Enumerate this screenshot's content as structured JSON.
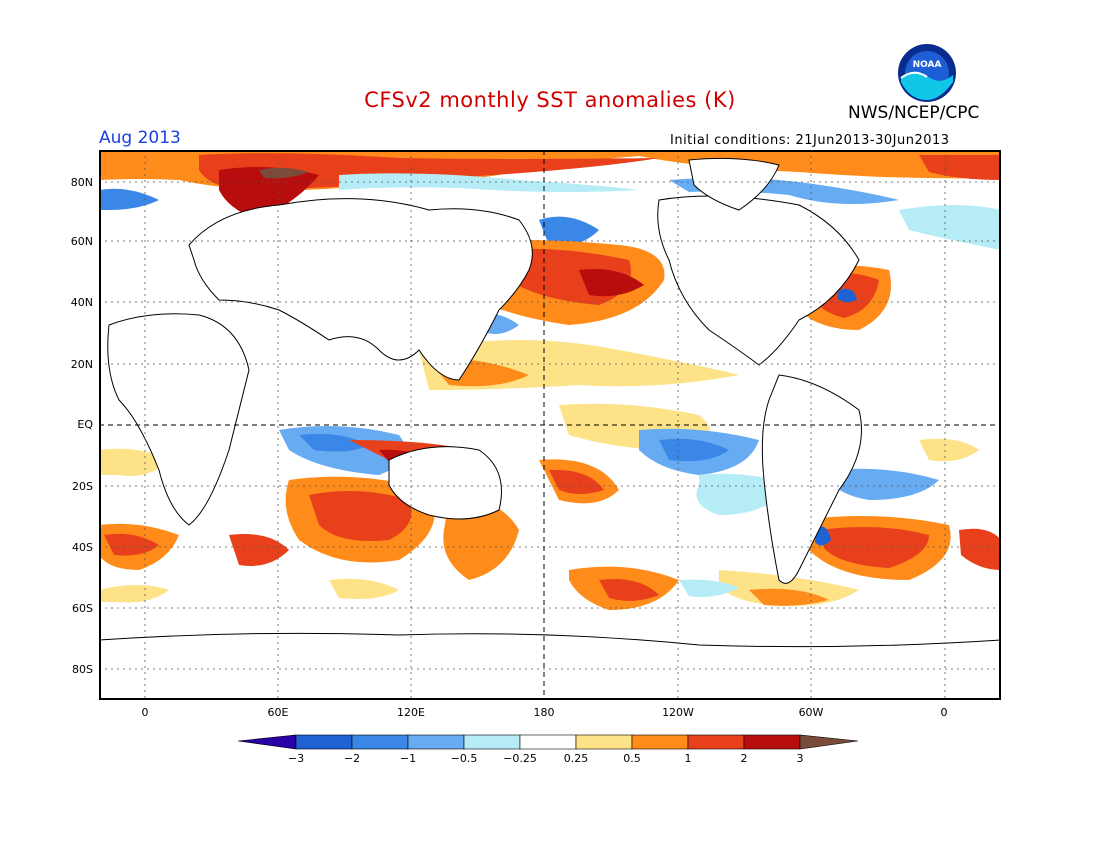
{
  "header": {
    "title": "CFSv2 monthly SST anomalies (K)",
    "agency": "NWS/NCEP/CPC",
    "logo_text": "NOAA",
    "month": "Aug 2013",
    "initial_conditions": "Initial conditions: 21Jun2013-30Jun2013"
  },
  "axes": {
    "lat_labels": [
      "80N",
      "60N",
      "40N",
      "20N",
      "EQ",
      "20S",
      "40S",
      "60S",
      "80S"
    ],
    "lon_labels": [
      "0",
      "60E",
      "120E",
      "180",
      "120W",
      "60W",
      "0"
    ]
  },
  "colorbar": {
    "labels": [
      "-3",
      "-2",
      "-1",
      "-0.5",
      "-0.25",
      "0.25",
      "0.5",
      "1",
      "2",
      "3"
    ],
    "colors": [
      "#2a00a8",
      "#1e62d4",
      "#3b87e8",
      "#67acf2",
      "#b5ecf5",
      "#ffffff",
      "#fde287",
      "#ff8c1a",
      "#e8401a",
      "#b80d0d",
      "#7a4a3a"
    ]
  },
  "colors": {
    "title": "#d10000",
    "month": "#1a3fe0",
    "land": "#ffffff",
    "coast": "#000000"
  }
}
